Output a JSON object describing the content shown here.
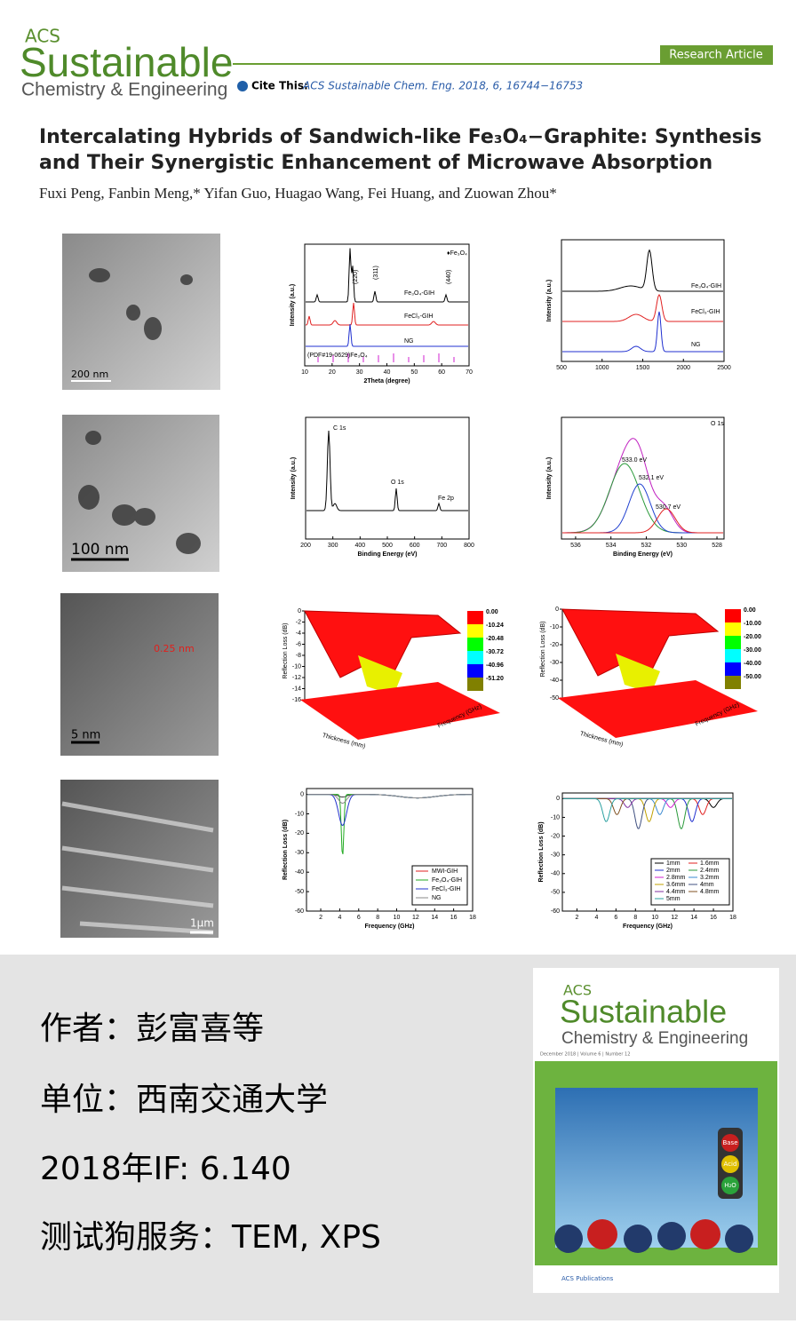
{
  "header": {
    "journal_top": "ACS",
    "journal_main": "Sustainable",
    "journal_sub": "Chemistry & Engineering",
    "badge": "Research Article",
    "cite_label": "Cite This:",
    "citation": "ACS Sustainable Chem. Eng. 2018, 6, 16744−16753"
  },
  "title": [
    "Intercalating Hybrids of Sandwich-like Fe₃O₄−Graphite: Synthesis",
    "and Their Synergistic Enhancement of Microwave Absorption"
  ],
  "authors": "Fuxi Peng, Fanbin Meng,* Yifan Guo, Huagao Wang, Fei Huang, and Zuowan Zhou*",
  "figure": {
    "scale_bars": [
      "200 nm",
      "100 nm",
      "5 nm",
      "1μm"
    ],
    "lattice": "0.25 nm",
    "xrd": {
      "ylabel": "Intensity (a.u.)",
      "xlabel": "2Theta (degree)",
      "xlim": [
        10,
        70
      ],
      "xticks": [
        10,
        20,
        30,
        40,
        50,
        60,
        70
      ],
      "labels": [
        "♦Fe₃O₄",
        "(220)",
        "(311)",
        "(440)",
        "Fe₃O₄-GIH",
        "FeCl₃-GIH",
        "NG",
        "(PDF#19-0629)Fe₃O₄"
      ]
    },
    "raman": {
      "ylabel": "Intensity (a.u.)",
      "xlim": [
        500,
        2500
      ],
      "xticks": [
        500,
        1000,
        1500,
        2000,
        2500
      ],
      "labels": [
        "Fe₃O₄-GIH",
        "FeCl₃-GIH",
        "NG"
      ]
    },
    "xps": {
      "ylabel": "Intensity (a.u.)",
      "xlabel": "Binding Energy (eV)",
      "xlim": [
        200,
        800
      ],
      "xticks": [
        200,
        300,
        400,
        500,
        600,
        700,
        800
      ],
      "labels": [
        "C 1s",
        "O 1s",
        "Fe 2p"
      ]
    },
    "o1s": {
      "ylabel": "Intensity (a.u.)",
      "xlabel": "Binding Energy (eV)",
      "xlim": [
        536.8,
        527.6
      ],
      "xticks": [
        536,
        534,
        532,
        530,
        528
      ],
      "labels": [
        "O 1s",
        "533.0 eV",
        "532.1 eV",
        "530.7 eV"
      ]
    },
    "rl3d_a": {
      "ylabel": "Reflection Loss (dB)",
      "ylim": [
        -16,
        0
      ],
      "yticks": [
        0,
        -2,
        -4,
        -6,
        -8,
        -10,
        -12,
        -14,
        -16
      ],
      "axis_labels": [
        "Thickness (mm)",
        "Frequency (GHz)"
      ],
      "colorbar": [
        "0.00",
        "-10.24",
        "-20.48",
        "-30.72",
        "-40.96",
        "-51.20"
      ]
    },
    "rl3d_b": {
      "ylabel": "Reflection Loss (dB)",
      "ylim": [
        -50,
        0
      ],
      "yticks": [
        0,
        -10,
        -20,
        -30,
        -40,
        -50
      ],
      "axis_labels": [
        "Thickness (mm)",
        "Frequency (GHz)"
      ],
      "colorbar": [
        "0.00",
        "-10.00",
        "-20.00",
        "-30.00",
        "-40.00",
        "-50.00"
      ]
    },
    "rl_a": {
      "ylabel": "Reflection Loss (dB)",
      "xlabel": "Frequency (GHz)",
      "xlim": [
        0.5,
        18
      ],
      "ylim": [
        -60,
        3
      ],
      "xticks": [
        2,
        4,
        6,
        8,
        10,
        12,
        14,
        16,
        18
      ],
      "yticks": [
        0,
        -10,
        -20,
        -30,
        -40,
        -50,
        -60
      ],
      "legend": [
        "MWI-GIH",
        "Fe₃O₄-GIH",
        "FeCl₃-GIH",
        "NG"
      ]
    },
    "rl_b": {
      "ylabel": "Reflection Loss (dB)",
      "xlabel": "Frequency (GHz)",
      "xlim": [
        0.5,
        18
      ],
      "ylim": [
        -60,
        3
      ],
      "xticks": [
        2,
        4,
        6,
        8,
        10,
        12,
        14,
        16,
        18
      ],
      "yticks": [
        0,
        -10,
        -20,
        -30,
        -40,
        -50,
        -60
      ],
      "legend": [
        "1mm",
        "1.6mm",
        "2mm",
        "2.4mm",
        "2.8mm",
        "3.2mm",
        "3.6mm",
        "4mm",
        "4.4mm",
        "4.8mm",
        "5mm"
      ]
    }
  },
  "info": [
    "作者：彭富喜等",
    "单位：西南交通大学",
    "2018年IF: 6.140",
    "测试狗服务：TEM, XPS"
  ],
  "cover": {
    "journal_top": "ACS",
    "journal_main": "Sustainable",
    "journal_sub": "Chemistry & Engineering",
    "issue": "December 2018 | Volume 6 | Number 12",
    "labels": [
      "Base",
      "Acid",
      "H₂O"
    ],
    "publisher": "ACS Publications"
  }
}
